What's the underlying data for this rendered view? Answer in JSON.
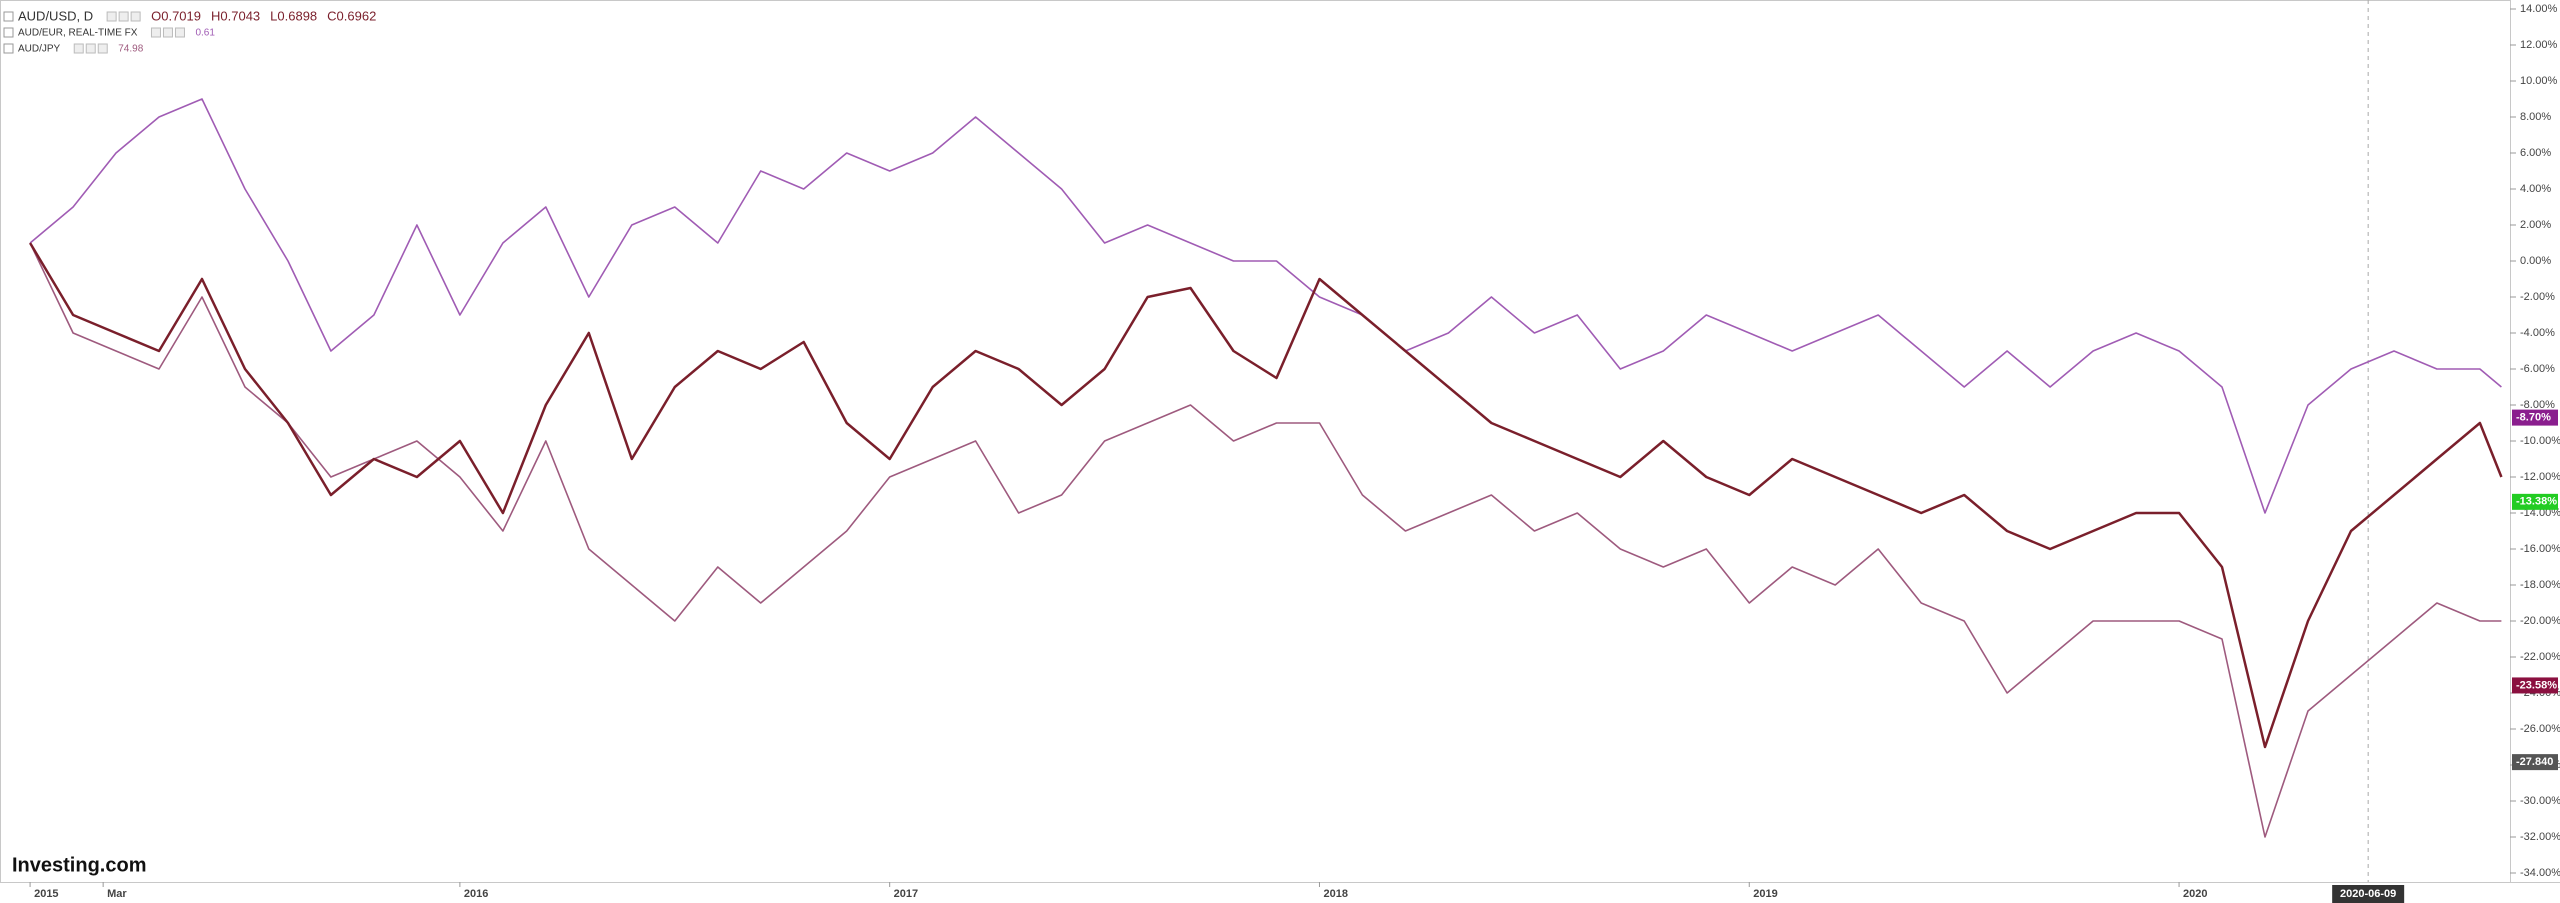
{
  "chart_data": {
    "type": "line",
    "series": [
      {
        "name": "AUD/USD, D",
        "color": "#7a1f2b",
        "ohlc": [
          "O0.7019",
          "H0.7043",
          "L0.6898",
          "C0.6962"
        ],
        "values": [
          1,
          -3,
          -4,
          -5,
          -1,
          -6,
          -9,
          -13,
          -11,
          -12,
          -10,
          -14,
          -8,
          -4,
          -11,
          -7,
          -5,
          -6,
          -4.5,
          -9,
          -11,
          -7,
          -5,
          -6,
          -8,
          -6,
          -2,
          -1.5,
          -5,
          -6.5,
          -1,
          -3,
          -5,
          -7,
          -9,
          -10,
          -11,
          -12,
          -10,
          -12,
          -13,
          -11,
          -12,
          -13,
          -14,
          -13,
          -15,
          -16,
          -15,
          -14,
          -14,
          -17,
          -27,
          -20,
          -15,
          -13,
          -11,
          -9,
          -12
        ]
      },
      {
        "name": "AUD/EUR, REAL-TIME FX",
        "color": "#a05cb4",
        "quote": "0.61",
        "values": [
          1,
          3,
          6,
          8,
          9,
          4,
          0,
          -5,
          -3,
          2,
          -3,
          1,
          3,
          -2,
          2,
          3,
          1,
          5,
          4,
          6,
          5,
          6,
          8,
          6,
          4,
          1,
          2,
          1,
          0,
          0,
          -2,
          -3,
          -5,
          -4,
          -2,
          -4,
          -3,
          -6,
          -5,
          -3,
          -4,
          -5,
          -4,
          -3,
          -5,
          -7,
          -5,
          -7,
          -5,
          -4,
          -5,
          -7,
          -14,
          -8,
          -6,
          -5,
          -6,
          -6,
          -7
        ]
      },
      {
        "name": "AUD/JPY",
        "color": "#9e5a7e",
        "quote": "74.98",
        "values": [
          1,
          -4,
          -5,
          -6,
          -2,
          -7,
          -9,
          -12,
          -11,
          -10,
          -12,
          -15,
          -10,
          -16,
          -18,
          -20,
          -17,
          -19,
          -17,
          -15,
          -12,
          -11,
          -10,
          -14,
          -13,
          -10,
          -9,
          -8,
          -10,
          -9,
          -9,
          -13,
          -15,
          -14,
          -13,
          -15,
          -14,
          -16,
          -17,
          -16,
          -19,
          -17,
          -18,
          -16,
          -19,
          -20,
          -24,
          -22,
          -20,
          -20,
          -20,
          -21,
          -32,
          -25,
          -23,
          -21,
          -19,
          -20,
          -20
        ]
      }
    ],
    "x": [
      2015.0,
      2015.1,
      2015.2,
      2015.3,
      2015.4,
      2015.5,
      2015.6,
      2015.7,
      2015.8,
      2015.9,
      2016.0,
      2016.1,
      2016.2,
      2016.3,
      2016.4,
      2016.5,
      2016.6,
      2016.7,
      2016.8,
      2016.9,
      2017.0,
      2017.1,
      2017.2,
      2017.3,
      2017.4,
      2017.5,
      2017.6,
      2017.7,
      2017.8,
      2017.9,
      2018.0,
      2018.1,
      2018.2,
      2018.3,
      2018.4,
      2018.5,
      2018.6,
      2018.7,
      2018.8,
      2018.9,
      2019.0,
      2019.1,
      2019.2,
      2019.3,
      2019.4,
      2019.5,
      2019.6,
      2019.7,
      2019.8,
      2019.9,
      2020.0,
      2020.1,
      2020.2,
      2020.3,
      2020.4,
      2020.5,
      2020.6,
      2020.7,
      2020.75
    ],
    "xlim": [
      2014.93,
      2020.77
    ],
    "xticks": [
      {
        "value": 2015,
        "label": "2015"
      },
      {
        "value": 2015.17,
        "label": "Mar"
      },
      {
        "value": 2016,
        "label": "2016"
      },
      {
        "value": 2017,
        "label": "2017"
      },
      {
        "value": 2018,
        "label": "2018"
      },
      {
        "value": 2019,
        "label": "2019"
      },
      {
        "value": 2020,
        "label": "2020"
      }
    ],
    "crosshair": {
      "value": 2020.44,
      "label": "2020-06-09"
    },
    "ylim": [
      -34.5,
      14.5
    ],
    "yticks": [
      {
        "value": 14,
        "label": "14.00%"
      },
      {
        "value": 12,
        "label": "12.00%"
      },
      {
        "value": 10,
        "label": "10.00%"
      },
      {
        "value": 8,
        "label": "8.00%"
      },
      {
        "value": 6,
        "label": "6.00%"
      },
      {
        "value": 4,
        "label": "4.00%"
      },
      {
        "value": 2,
        "label": "2.00%"
      },
      {
        "value": 0,
        "label": "0.00%"
      },
      {
        "value": -2,
        "label": "-2.00%"
      },
      {
        "value": -4,
        "label": "-4.00%"
      },
      {
        "value": -6,
        "label": "-6.00%"
      },
      {
        "value": -8,
        "label": "-8.00%"
      },
      {
        "value": -10,
        "label": "-10.00%"
      },
      {
        "value": -12,
        "label": "-12.00%"
      },
      {
        "value": -14,
        "label": "-14.00%"
      },
      {
        "value": -16,
        "label": "-16.00%"
      },
      {
        "value": -18,
        "label": "-18.00%"
      },
      {
        "value": -20,
        "label": "-20.00%"
      },
      {
        "value": -22,
        "label": "-22.00%"
      },
      {
        "value": -24,
        "label": "-24.00%"
      },
      {
        "value": -26,
        "label": "-26.00%"
      },
      {
        "value": -28,
        "label": "-28.00%"
      },
      {
        "value": -30,
        "label": "-30.00%"
      },
      {
        "value": -32,
        "label": "-32.00%"
      },
      {
        "value": -34,
        "label": "-34.00%"
      }
    ],
    "price_labels": [
      {
        "value": -8.7,
        "label": "-8.70%",
        "color": "#8a1e8e"
      },
      {
        "value": -13.38,
        "label": "-13.38%",
        "color": "#22cc22"
      },
      {
        "value": -23.58,
        "label": "-23.58%",
        "color": "#8b1040"
      },
      {
        "value": -27.84,
        "label": "-27.840",
        "color": "#555555"
      }
    ],
    "logo": "Investing.com"
  }
}
